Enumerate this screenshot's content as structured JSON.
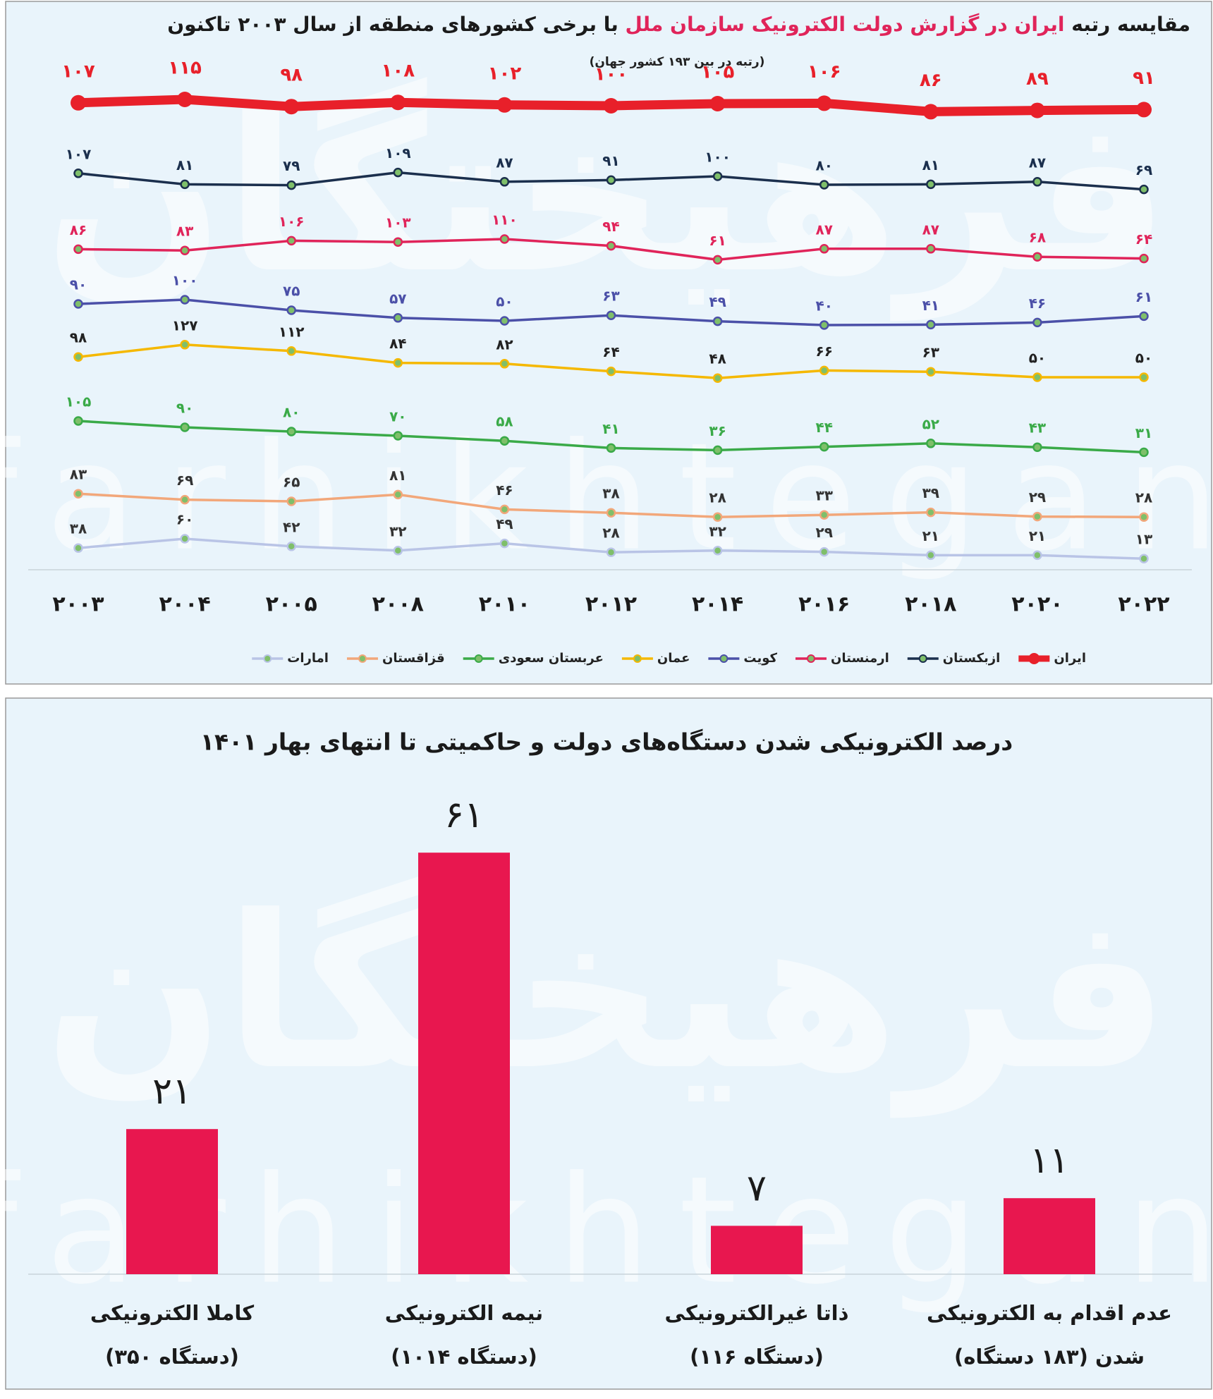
{
  "watermark": [
    "فرهیختگان",
    "farhikhtegan"
  ],
  "chart_data": [
    {
      "type": "line",
      "title": [
        "مقایسه رتبه",
        "ایران در گزارش دولت الکترونیک سازمان ملل",
        "با برخی کشورهای منطقه از سال ۲۰۰۳ تاکنون"
      ],
      "title_highlight_color": "#e0245a",
      "subtitle": "(رتبه در بین ۱۹۳ کشور جهان)",
      "categories": [
        "۲۰۰۳",
        "۲۰۰۴",
        "۲۰۰۵",
        "۲۰۰۸",
        "۲۰۱۰",
        "۲۰۱۲",
        "۲۰۱۴",
        "۲۰۱۶",
        "۲۰۱۸",
        "۲۰۲۰",
        "۲۰۲۲"
      ],
      "legend": "bottom",
      "series": [
        {
          "name": "ایران",
          "color": "#e8202a",
          "label_color": "#e8202a",
          "values": [
            107,
            115,
            98,
            108,
            102,
            100,
            105,
            106,
            86,
            89,
            91
          ],
          "value_labels": [
            "۱۰۷",
            "۱۱۵",
            "۹۸",
            "۱۰۸",
            "۱۰۲",
            "۱۰۰",
            "۱۰۵",
            "۱۰۶",
            "۸۶",
            "۸۹",
            "۹۱"
          ]
        },
        {
          "name": "ازبکستان",
          "color": "#1b2f4d",
          "label_color": "#1b2f4d",
          "values": [
            107,
            81,
            79,
            109,
            87,
            91,
            100,
            80,
            81,
            87,
            69
          ],
          "value_labels": [
            "۱۰۷",
            "۸۱",
            "۷۹",
            "۱۰۹",
            "۸۷",
            "۹۱",
            "۱۰۰",
            "۸۰",
            "۸۱",
            "۸۷",
            "۶۹"
          ]
        },
        {
          "name": "ارمنستان",
          "color": "#e0245a",
          "label_color": "#e0245a",
          "values": [
            86,
            83,
            106,
            103,
            110,
            94,
            61,
            87,
            87,
            68,
            64
          ],
          "value_labels": [
            "۸۶",
            "۸۳",
            "۱۰۶",
            "۱۰۳",
            "۱۱۰",
            "۹۴",
            "۶۱",
            "۸۷",
            "۸۷",
            "۶۸",
            "۶۴"
          ]
        },
        {
          "name": "کویت",
          "color": "#4b50a8",
          "label_color": "#4b50a8",
          "values": [
            90,
            100,
            75,
            57,
            50,
            63,
            49,
            40,
            41,
            46,
            61
          ],
          "value_labels": [
            "۹۰",
            "۱۰۰",
            "۷۵",
            "۵۷",
            "۵۰",
            "۶۳",
            "۴۹",
            "۴۰",
            "۴۱",
            "۴۶",
            "۶۱"
          ]
        },
        {
          "name": "عمان",
          "color": "#f5b800",
          "label_color": "#222222",
          "values": [
            98,
            127,
            112,
            84,
            82,
            64,
            48,
            66,
            63,
            50,
            50
          ],
          "value_labels": [
            "۹۸",
            "۱۲۷",
            "۱۱۲",
            "۸۴",
            "۸۲",
            "۶۴",
            "۴۸",
            "۶۶",
            "۶۳",
            "۵۰",
            "۵۰"
          ]
        },
        {
          "name": "عربستان سعودی",
          "color": "#3aaa48",
          "label_color": "#3aaa48",
          "values": [
            105,
            90,
            80,
            70,
            58,
            41,
            36,
            44,
            52,
            43,
            31
          ],
          "value_labels": [
            "۱۰۵",
            "۹۰",
            "۸۰",
            "۷۰",
            "۵۸",
            "۴۱",
            "۳۶",
            "۴۴",
            "۵۲",
            "۴۳",
            "۳۱"
          ]
        },
        {
          "name": "قزاقستان",
          "color": "#f2a77a",
          "label_color": "#333333",
          "values": [
            83,
            69,
            65,
            81,
            46,
            38,
            28,
            33,
            39,
            29,
            28
          ],
          "value_labels": [
            "۸۳",
            "۶۹",
            "۶۵",
            "۸۱",
            "۴۶",
            "۳۸",
            "۲۸",
            "۳۳",
            "۳۹",
            "۲۹",
            "۲۸"
          ]
        },
        {
          "name": "امارات",
          "color": "#b9c4e6",
          "label_color": "#333333",
          "values": [
            38,
            60,
            42,
            32,
            49,
            28,
            32,
            29,
            21,
            21,
            13
          ],
          "value_labels": [
            "۳۸",
            "۶۰",
            "۴۲",
            "۳۲",
            "۴۹",
            "۲۸",
            "۳۲",
            "۲۹",
            "۲۱",
            "۲۱",
            "۱۳"
          ]
        }
      ]
    },
    {
      "type": "bar",
      "title": "درصد الکترونیکی شدن دستگاه‌های دولت و حاکمیتی تا انتهای بهار ۱۴۰۱",
      "categories": [
        [
          "کاملا الکترونیکی",
          "(۳۵۰ دستگاه)"
        ],
        [
          "نیمه الکترونیکی",
          "(۱۰۱۴ دستگاه)"
        ],
        [
          "ذاتا غیرالکترونیکی",
          "(۱۱۶ دستگاه)"
        ],
        [
          "عدم اقدام به الکترونیکی",
          "شدن (۱۸۳ دستگاه)"
        ]
      ],
      "values": [
        21,
        61,
        7,
        11
      ],
      "value_labels": [
        "۲۱",
        "۶۱",
        "۷",
        "۱۱"
      ],
      "color": "#e8174f"
    }
  ]
}
